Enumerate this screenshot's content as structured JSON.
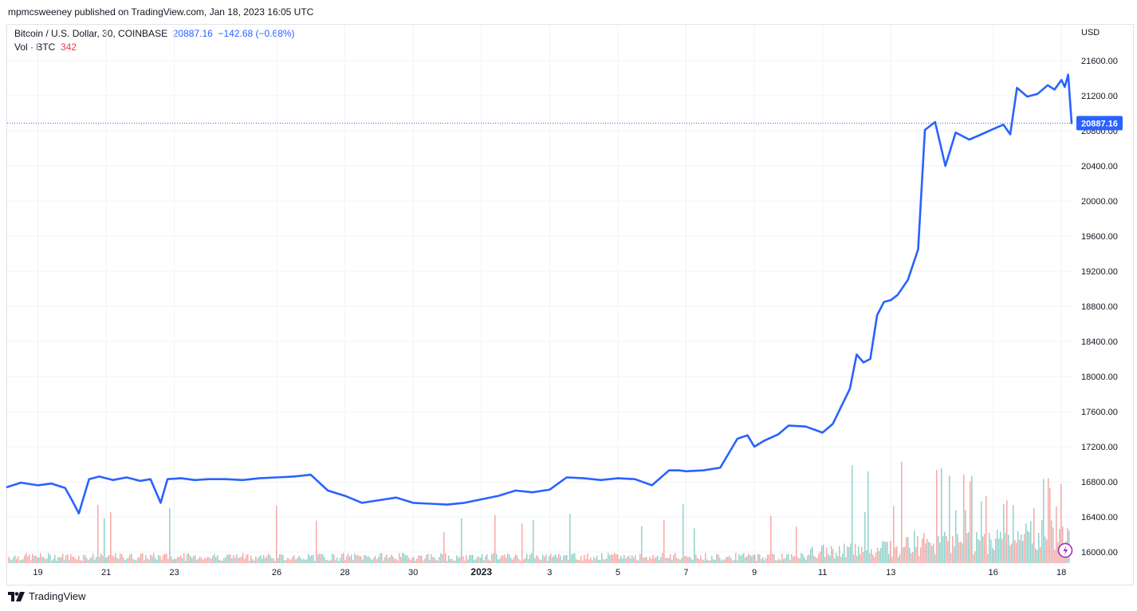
{
  "header": {
    "publish_text": "mpmcsweeney published on TradingView.com, Jan 18, 2023 16:05 UTC"
  },
  "legend": {
    "symbol_text": "Bitcoin / U.S. Dollar, 30, COINBASE",
    "last_price": "20887.16",
    "change_text": "−142.68 (−0.68%)",
    "vol_label": "Vol · BTC",
    "vol_value": "342"
  },
  "footer": {
    "brand": "TradingView"
  },
  "colors": {
    "line": "#2962ff",
    "vol_up": "#26a69a",
    "vol_down": "#ef5350",
    "price_label_bg": "#2962ff"
  },
  "chart_data": {
    "type": "line",
    "currency_label": "USD",
    "last_price_label": "20887.16",
    "ylim": [
      15900,
      21700
    ],
    "y_ticks": [
      "21600.00",
      "21200.00",
      "20800.00",
      "20400.00",
      "20000.00",
      "19600.00",
      "19200.00",
      "18800.00",
      "18400.00",
      "18000.00",
      "17600.00",
      "17200.00",
      "16800.00",
      "16400.00",
      "16000.00"
    ],
    "x_ticks": [
      "19",
      "21",
      "23",
      "26",
      "28",
      "30",
      "2023",
      "3",
      "5",
      "7",
      "9",
      "11",
      "13",
      "16",
      "18"
    ],
    "x_tick_days": [
      0,
      2,
      4,
      7,
      9,
      11,
      13,
      15,
      17,
      19,
      21,
      23,
      25,
      28,
      30
    ],
    "x_range_days": [
      -0.9,
      30.3
    ],
    "series": [
      {
        "x_days": [
          -0.9,
          -0.5,
          0.0,
          0.4,
          0.8,
          1.0,
          1.2,
          1.5,
          1.8,
          2.2,
          2.6,
          3.0,
          3.3,
          3.6,
          3.8,
          4.2,
          4.6,
          5.0,
          5.5,
          6.0,
          6.5,
          7.0,
          7.5,
          8.0,
          8.5,
          9.0,
          9.5,
          10.0,
          10.5,
          11.0,
          11.5,
          12.0,
          12.5,
          13.0,
          13.5,
          14.0,
          14.5,
          15.0,
          15.5,
          16.0,
          16.5,
          17.0,
          17.5,
          18.0,
          18.5,
          18.8,
          19.0,
          19.5,
          20.0,
          20.5,
          20.8,
          21.0,
          21.3,
          21.7,
          22.0,
          22.5,
          23.0,
          23.3,
          23.8,
          24.0,
          24.2,
          24.4,
          24.6,
          24.8,
          25.0,
          25.2,
          25.5,
          25.8,
          26.0,
          26.3,
          26.6,
          26.9,
          27.0,
          27.3,
          27.6,
          28.0,
          28.3,
          28.5,
          28.7,
          29.0,
          29.3,
          29.6,
          29.8,
          30.0,
          30.1,
          30.2,
          30.3
        ],
        "values": [
          16740,
          16790,
          16760,
          16780,
          16730,
          16590,
          16440,
          16830,
          16860,
          16820,
          16850,
          16810,
          16830,
          16560,
          16830,
          16840,
          16820,
          16830,
          16830,
          16820,
          16840,
          16850,
          16860,
          16880,
          16700,
          16640,
          16560,
          16590,
          16620,
          16560,
          16550,
          16540,
          16560,
          16600,
          16640,
          16700,
          16680,
          16710,
          16850,
          16840,
          16820,
          16840,
          16830,
          16760,
          16930,
          16930,
          16920,
          16930,
          16960,
          17290,
          17330,
          17200,
          17270,
          17340,
          17440,
          17430,
          17360,
          17460,
          17860,
          18250,
          18160,
          18200,
          18700,
          18850,
          18870,
          18930,
          19100,
          19450,
          20810,
          20900,
          20400,
          20780,
          20760,
          20700,
          20750,
          20820,
          20870,
          20760,
          21290,
          21190,
          21220,
          21320,
          21270,
          21380,
          21300,
          21440,
          20887
        ]
      }
    ],
    "volume_note": "volume histogram in lower pane, values not printed"
  }
}
